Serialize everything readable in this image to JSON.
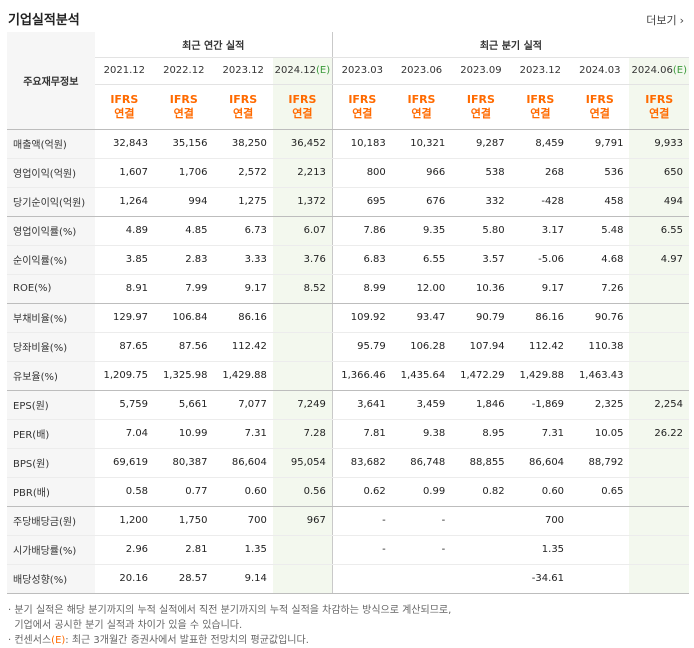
{
  "page": {
    "title": "기업실적분석",
    "more_label": "더보기"
  },
  "header": {
    "row_label": "주요재무정보",
    "annual_label": "최근 연간 실적",
    "quarter_label": "최근 분기 실적",
    "annual_periods": [
      "2021.12",
      "2022.12",
      "2023.12",
      "2024.12"
    ],
    "quarter_periods": [
      "2023.03",
      "2023.06",
      "2023.09",
      "2023.12",
      "2024.03",
      "2024.06"
    ],
    "estimate_mark": "(E)",
    "ifrs_line1": "IFRS",
    "ifrs_line2": "연결"
  },
  "rows": [
    {
      "label": "매출액(억원)",
      "values": [
        "32,843",
        "35,156",
        "38,250",
        "36,452",
        "10,183",
        "10,321",
        "9,287",
        "8,459",
        "9,791",
        "9,933"
      ]
    },
    {
      "label": "영업이익(억원)",
      "values": [
        "1,607",
        "1,706",
        "2,572",
        "2,213",
        "800",
        "966",
        "538",
        "268",
        "536",
        "650"
      ]
    },
    {
      "label": "당기순이익(억원)",
      "values": [
        "1,264",
        "994",
        "1,275",
        "1,372",
        "695",
        "676",
        "332",
        "-428",
        "458",
        "494"
      ]
    },
    {
      "label": "영업이익률(%)",
      "values": [
        "4.89",
        "4.85",
        "6.73",
        "6.07",
        "7.86",
        "9.35",
        "5.80",
        "3.17",
        "5.48",
        "6.55"
      ]
    },
    {
      "label": "순이익률(%)",
      "values": [
        "3.85",
        "2.83",
        "3.33",
        "3.76",
        "6.83",
        "6.55",
        "3.57",
        "-5.06",
        "4.68",
        "4.97"
      ]
    },
    {
      "label": "ROE(%)",
      "values": [
        "8.91",
        "7.99",
        "9.17",
        "8.52",
        "8.99",
        "12.00",
        "10.36",
        "9.17",
        "7.26",
        ""
      ]
    },
    {
      "label": "부채비율(%)",
      "values": [
        "129.97",
        "106.84",
        "86.16",
        "",
        "109.92",
        "93.47",
        "90.79",
        "86.16",
        "90.76",
        ""
      ]
    },
    {
      "label": "당좌비율(%)",
      "values": [
        "87.65",
        "87.56",
        "112.42",
        "",
        "95.79",
        "106.28",
        "107.94",
        "112.42",
        "110.38",
        ""
      ]
    },
    {
      "label": "유보율(%)",
      "values": [
        "1,209.75",
        "1,325.98",
        "1,429.88",
        "",
        "1,366.46",
        "1,435.64",
        "1,472.29",
        "1,429.88",
        "1,463.43",
        ""
      ]
    },
    {
      "label": "EPS(원)",
      "values": [
        "5,759",
        "5,661",
        "7,077",
        "7,249",
        "3,641",
        "3,459",
        "1,846",
        "-1,869",
        "2,325",
        "2,254"
      ]
    },
    {
      "label": "PER(배)",
      "values": [
        "7.04",
        "10.99",
        "7.31",
        "7.28",
        "7.81",
        "9.38",
        "8.95",
        "7.31",
        "10.05",
        "26.22"
      ]
    },
    {
      "label": "BPS(원)",
      "values": [
        "69,619",
        "80,387",
        "86,604",
        "95,054",
        "83,682",
        "86,748",
        "88,855",
        "86,604",
        "88,792",
        ""
      ]
    },
    {
      "label": "PBR(배)",
      "values": [
        "0.58",
        "0.77",
        "0.60",
        "0.56",
        "0.62",
        "0.99",
        "0.82",
        "0.60",
        "0.65",
        ""
      ]
    },
    {
      "label": "주당배당금(원)",
      "values": [
        "1,200",
        "1,750",
        "700",
        "967",
        "-",
        "-",
        "",
        "700",
        "",
        ""
      ]
    },
    {
      "label": "시가배당률(%)",
      "values": [
        "2.96",
        "2.81",
        "1.35",
        "",
        "-",
        "-",
        "",
        "1.35",
        "",
        ""
      ]
    },
    {
      "label": "배당성향(%)",
      "values": [
        "20.16",
        "28.57",
        "9.14",
        "",
        "",
        "",
        "",
        "-34.61",
        "",
        ""
      ]
    }
  ],
  "notes": {
    "line1": "분기 실적은 해당 분기까지의 누적 실적에서 직전 분기까지의 누적 실적을 차감하는 방식으로 계산되므로,",
    "line2": "기업에서 공시한 분기 실적과 차이가 있을 수 있습니다.",
    "line3_prefix": "컨센서스",
    "line3_mark": "(E)",
    "line3_suffix": ": 최근 3개월간 증권사에서 발표한 전망치의 평균값입니다."
  }
}
